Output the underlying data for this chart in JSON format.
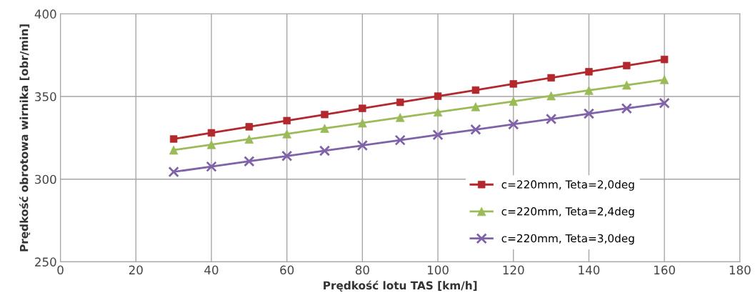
{
  "chart_data": {
    "type": "line",
    "xlabel": "Prędkość lotu TAS [km/h]",
    "ylabel": "Prędkość obrotowa wirnika [obr/min]",
    "x": [
      30,
      40,
      50,
      60,
      70,
      80,
      90,
      100,
      110,
      120,
      130,
      140,
      150,
      160
    ],
    "series": [
      {
        "name": "c=220mm, Teta=2,0deg",
        "color": "#b3282d",
        "marker": "square",
        "values": [
          324.3,
          328.0,
          331.7,
          335.4,
          339.1,
          342.8,
          346.5,
          350.2,
          353.9,
          357.6,
          361.3,
          365.0,
          368.7,
          372.4
        ]
      },
      {
        "name": "c=220mm, Teta=2,4deg",
        "color": "#9bbb59",
        "marker": "triangle",
        "values": [
          317.6,
          320.9,
          324.2,
          327.4,
          330.7,
          334.0,
          337.3,
          340.6,
          343.8,
          347.1,
          350.4,
          353.7,
          356.9,
          360.2
        ]
      },
      {
        "name": "c=220mm, Teta=3,0deg",
        "color": "#7f62a8",
        "marker": "cross",
        "values": [
          304.4,
          307.6,
          310.8,
          314.0,
          317.2,
          320.4,
          323.6,
          326.8,
          330.0,
          333.2,
          336.4,
          339.6,
          342.8,
          346.0
        ]
      }
    ],
    "xlim": [
      0,
      180
    ],
    "xticks": [
      0,
      20,
      40,
      60,
      80,
      100,
      120,
      140,
      160,
      180
    ],
    "ylim": [
      250,
      400
    ],
    "yticks": [
      250,
      300,
      350,
      400
    ],
    "grid": true,
    "legend": "bottom right",
    "line_style": "solid"
  }
}
